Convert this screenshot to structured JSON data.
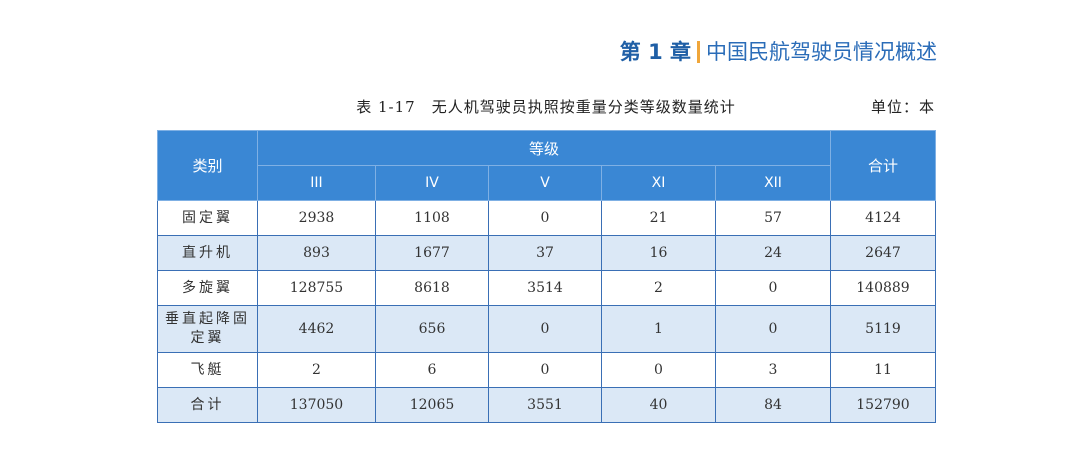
{
  "header": {
    "chapter": "第 1 章",
    "title": "中国民航驾驶员情况概述"
  },
  "caption": {
    "title": "表 1-17　无人机驾驶员执照按重量分类等级数量统计",
    "unit": "单位：本"
  },
  "table": {
    "category_header": "类别",
    "grade_header": "等级",
    "total_header": "合计",
    "grades": [
      "III",
      "IV",
      "V",
      "XI",
      "XII"
    ],
    "rows": [
      {
        "label": "固定翼",
        "values": [
          "2938",
          "1108",
          "0",
          "21",
          "57"
        ],
        "total": "4124"
      },
      {
        "label": "直升机",
        "values": [
          "893",
          "1677",
          "37",
          "16",
          "24"
        ],
        "total": "2647"
      },
      {
        "label": "多旋翼",
        "values": [
          "128755",
          "8618",
          "3514",
          "2",
          "0"
        ],
        "total": "140889"
      },
      {
        "label": "垂直起降固定翼",
        "values": [
          "4462",
          "656",
          "0",
          "1",
          "0"
        ],
        "total": "5119"
      },
      {
        "label": "飞艇",
        "values": [
          "2",
          "6",
          "0",
          "0",
          "3"
        ],
        "total": "11"
      },
      {
        "label": "合计",
        "values": [
          "137050",
          "12065",
          "3551",
          "40",
          "84"
        ],
        "total": "152790"
      }
    ]
  },
  "colors": {
    "header_bg": "#3a87d4",
    "stripe_bg": "#dbe8f6",
    "chapter_accent": "#f0a63a",
    "chapter_text": "#2a6cb8"
  }
}
